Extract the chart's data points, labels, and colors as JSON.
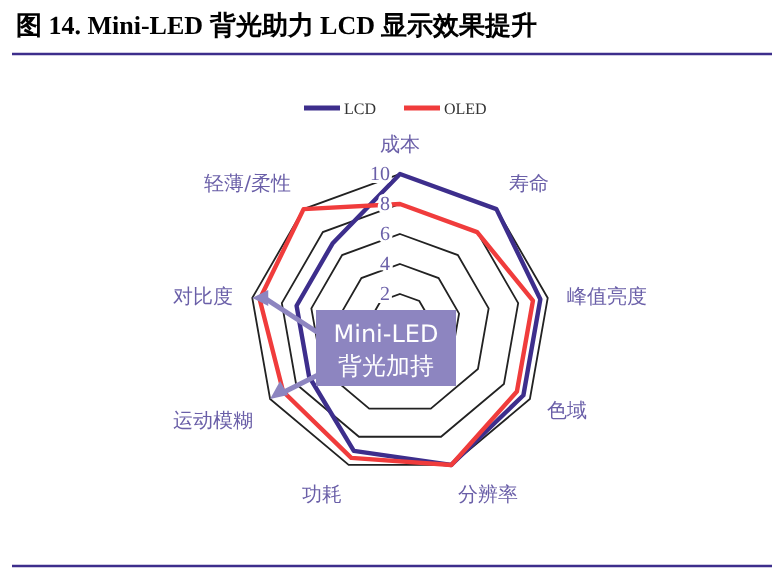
{
  "chart_data": {
    "type": "radar",
    "title": "图 14. Mini-LED 背光助力 LCD 显示效果提升",
    "categories": [
      "成本",
      "寿命",
      "峰值亮度",
      "色域",
      "分辨率",
      "功耗",
      "运动模糊",
      "对比度",
      "轻薄/柔性"
    ],
    "series": [
      {
        "name": "LCD",
        "color": "#3d2e8c",
        "values": [
          10,
          10,
          9.5,
          9.5,
          10,
          9,
          7,
          7,
          7
        ]
      },
      {
        "name": "OLED",
        "color": "#f03c3c",
        "values": [
          8,
          8,
          9,
          9,
          10,
          9.5,
          9,
          9.5,
          10
        ]
      }
    ],
    "ylim": [
      0,
      10
    ],
    "yticks": [
      2,
      4,
      6,
      8,
      10
    ],
    "grid": true,
    "legend": "top",
    "marker": "none",
    "line_style": "solid",
    "annotations": [
      "Mini-LED\n背光加持"
    ]
  }
}
